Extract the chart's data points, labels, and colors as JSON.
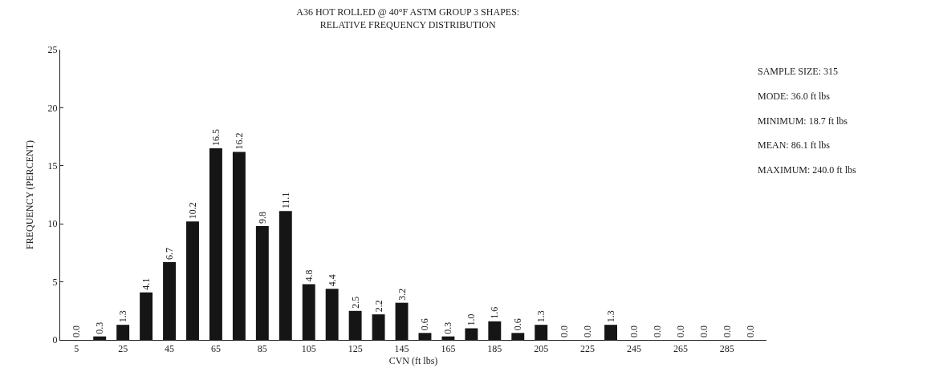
{
  "chart_data": {
    "type": "bar",
    "title": "A36 HOT ROLLED @ 40°F ASTM GROUP 3 SHAPES:",
    "subtitle": "RELATIVE FREQUENCY DISTRIBUTION",
    "xlabel": "CVN (ft lbs)",
    "ylabel": "FREQUENCY (PERCENT)",
    "categories": [
      "5",
      null,
      "25",
      null,
      "45",
      null,
      "65",
      null,
      "85",
      null,
      "105",
      null,
      "125",
      null,
      "145",
      null,
      "165",
      null,
      "185",
      null,
      "205",
      null,
      "225",
      null,
      "245",
      null,
      "265",
      null,
      "285",
      null
    ],
    "values": [
      0.0,
      0.3,
      1.3,
      4.1,
      6.7,
      10.2,
      16.5,
      16.2,
      9.8,
      11.1,
      4.8,
      4.4,
      2.5,
      2.2,
      3.2,
      0.6,
      0.3,
      1.0,
      1.6,
      0.6,
      1.3,
      0.0,
      0.0,
      1.3,
      0.0,
      0.0,
      0.0,
      0.0,
      0.0,
      0.0
    ],
    "value_labels": [
      "0.0",
      "0.3",
      "1.3",
      "4.1",
      "6.7",
      "10.2",
      "16.5",
      "16.2",
      "9.8",
      "11.1",
      "4.8",
      "4.4",
      "2.5",
      "2.2",
      "3.2",
      "0.6",
      "0.3",
      "1.0",
      "1.6",
      "0.6",
      "1.3",
      "0.0",
      "0.0",
      "1.3",
      "0.0",
      "0.0",
      "0.0",
      "0.0",
      "0.0",
      "0.0"
    ],
    "color": "#151515",
    "ylim": [
      0,
      25
    ],
    "yticks": [
      0,
      5,
      10,
      15,
      20,
      25
    ],
    "grid": false,
    "legend": false,
    "annotations": [
      "SAMPLE SIZE: 315",
      "MODE: 36.0 ft lbs",
      "MINIMUM: 18.7 ft lbs",
      "MEAN: 86.1 ft lbs",
      "MAXIMUM: 240.0 ft lbs"
    ]
  }
}
